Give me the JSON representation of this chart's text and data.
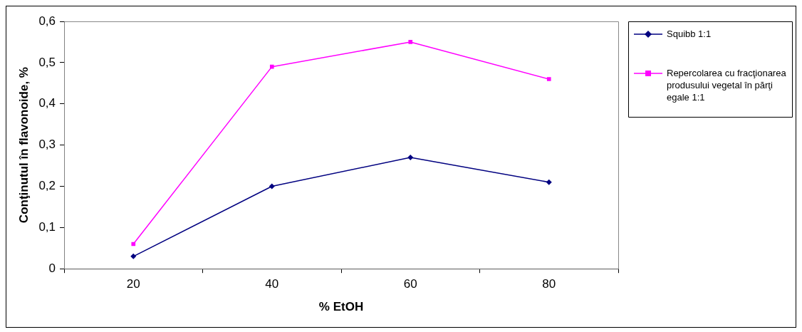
{
  "chart_data": {
    "type": "line",
    "xlabel": "% EtOH",
    "ylabel": "Conţinutul în flavonoide, %",
    "categories": [
      "20",
      "40",
      "60",
      "80"
    ],
    "series": [
      {
        "name": "Squibb 1:1",
        "color": "#000080",
        "marker": "diamond",
        "values": [
          0.03,
          0.2,
          0.27,
          0.21
        ]
      },
      {
        "name": "Repercolarea cu fracţionarea produsului vegetal în părţi egale 1:1",
        "color": "#ff00ff",
        "marker": "square",
        "values": [
          0.06,
          0.49,
          0.55,
          0.46
        ]
      }
    ],
    "ylim": [
      0,
      0.6
    ],
    "yticks": [
      0,
      {
        "value": 0.1,
        "label": "0,1"
      },
      {
        "value": 0.2,
        "label": "0,2"
      },
      {
        "value": 0.3,
        "label": "0,3"
      },
      {
        "value": 0.4,
        "label": "0,4"
      },
      {
        "value": 0.5,
        "label": "0,5"
      },
      {
        "value": 0.6,
        "label": "0,6"
      }
    ],
    "grid": false,
    "legend": "right",
    "line_style": "solid"
  }
}
